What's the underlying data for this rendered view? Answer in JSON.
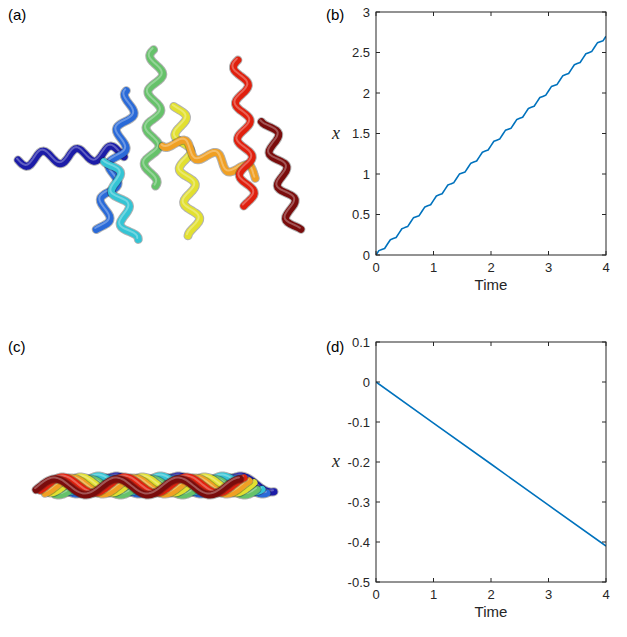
{
  "figure": {
    "panel_labels": [
      "(a)",
      "(b)",
      "(c)",
      "(d)"
    ]
  },
  "chart_data": [
    {
      "type": "line",
      "x_label": "Time",
      "y_label": "x",
      "x": [
        0,
        0.05,
        0.1,
        0.15,
        0.2,
        0.25,
        0.3,
        0.35,
        0.4,
        0.45,
        0.5,
        0.55,
        0.6,
        0.65,
        0.7,
        0.75,
        0.8,
        0.85,
        0.9,
        0.95,
        1,
        1.05,
        1.1,
        1.15,
        1.2,
        1.25,
        1.3,
        1.35,
        1.4,
        1.45,
        1.5,
        1.55,
        1.6,
        1.65,
        1.7,
        1.75,
        1.8,
        1.85,
        1.9,
        1.95,
        2,
        2.05,
        2.1,
        2.15,
        2.2,
        2.25,
        2.3,
        2.35,
        2.4,
        2.45,
        2.5,
        2.55,
        2.6,
        2.65,
        2.7,
        2.75,
        2.8,
        2.85,
        2.9,
        2.95,
        3,
        3.05,
        3.1,
        3.15,
        3.2,
        3.25,
        3.3,
        3.35,
        3.4,
        3.45,
        3.5,
        3.55,
        3.6,
        3.65,
        3.7,
        3.75,
        3.8,
        3.85,
        3.9,
        3.95,
        4
      ],
      "series": [
        {
          "color": "#0072bd",
          "values": [
            0,
            0.054,
            0.068,
            0.081,
            0.135,
            0.189,
            0.203,
            0.216,
            0.27,
            0.324,
            0.338,
            0.351,
            0.405,
            0.459,
            0.473,
            0.486,
            0.54,
            0.594,
            0.608,
            0.621,
            0.675,
            0.729,
            0.743,
            0.756,
            0.81,
            0.864,
            0.878,
            0.891,
            0.945,
            0.999,
            1.013,
            1.026,
            1.08,
            1.134,
            1.148,
            1.161,
            1.215,
            1.269,
            1.283,
            1.296,
            1.35,
            1.404,
            1.418,
            1.431,
            1.485,
            1.539,
            1.553,
            1.566,
            1.62,
            1.674,
            1.688,
            1.701,
            1.755,
            1.809,
            1.823,
            1.836,
            1.89,
            1.944,
            1.958,
            1.971,
            2.025,
            2.079,
            2.093,
            2.106,
            2.16,
            2.214,
            2.228,
            2.241,
            2.295,
            2.349,
            2.363,
            2.376,
            2.43,
            2.484,
            2.498,
            2.511,
            2.565,
            2.619,
            2.633,
            2.646,
            2.7
          ]
        }
      ],
      "xlim": [
        0,
        4
      ],
      "xticks": [
        0,
        1,
        2,
        3,
        4
      ],
      "ylim": [
        0,
        3
      ],
      "yticks": [
        0,
        0.5,
        1,
        1.5,
        2,
        2.5,
        3
      ],
      "grid": false
    },
    {
      "type": "line",
      "x_label": "Time",
      "y_label": "x",
      "x": [
        0,
        1,
        2,
        3,
        4
      ],
      "series": [
        {
          "color": "#0072bd",
          "values": [
            0,
            -0.103,
            -0.205,
            -0.308,
            -0.41
          ]
        }
      ],
      "xlim": [
        0,
        4
      ],
      "xticks": [
        0,
        1,
        2,
        3,
        4
      ],
      "ylim": [
        -0.5,
        0.1
      ],
      "yticks": [
        -0.5,
        -0.4,
        -0.3,
        -0.2,
        -0.1,
        0,
        0.1
      ],
      "grid": false
    }
  ]
}
